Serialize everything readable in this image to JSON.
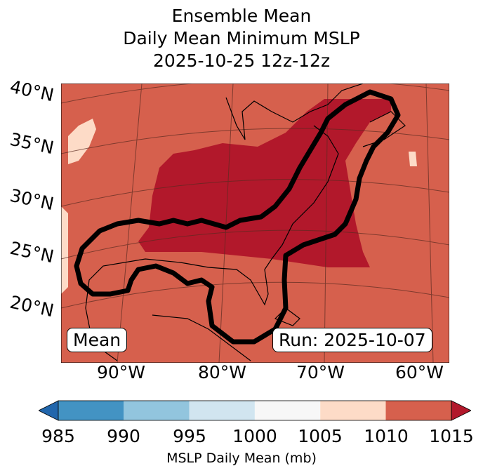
{
  "title": {
    "line1": "Ensemble Mean",
    "line2": "Daily Mean Minimum MSLP",
    "line3": "2025-10-25 12z-12z"
  },
  "map": {
    "lat_labels": [
      "40°N",
      "35°N",
      "30°N",
      "25°N",
      "20°N"
    ],
    "lon_labels": [
      "90°W",
      "80°W",
      "70°W",
      "60°W"
    ],
    "left_box": "Mean",
    "right_box": "Run: 2025-10-07",
    "colors": {
      "background": "#d6604d",
      "high": "#b2182b",
      "light": "#fddbc7"
    }
  },
  "colorbar": {
    "ticks": [
      "985",
      "990",
      "995",
      "1000",
      "1005",
      "1010",
      "1015"
    ],
    "colors": [
      "#2166ac",
      "#4393c3",
      "#92c5de",
      "#d1e5f0",
      "#f7f7f7",
      "#fddbc7",
      "#d6604d",
      "#b2182b"
    ],
    "label": "MSLP Daily Mean (mb)"
  }
}
